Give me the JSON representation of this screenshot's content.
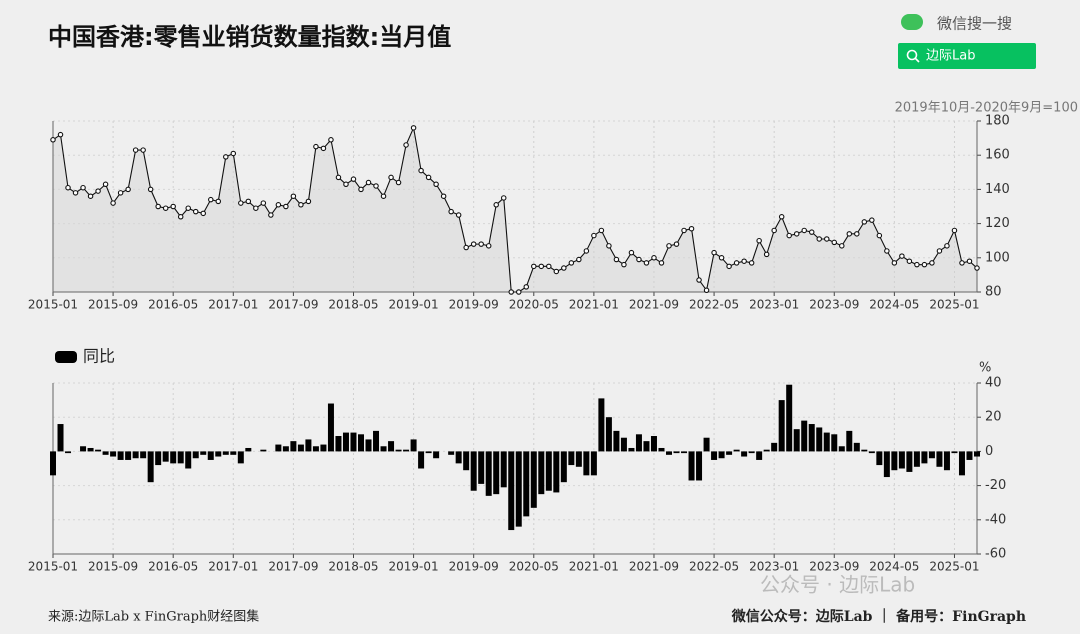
{
  "header": {
    "title": "中国香港:零售业销货数量指数:当月值",
    "search_label": "微信搜一搜",
    "search_box": "边际Lab"
  },
  "chart_data": [
    {
      "type": "line",
      "annotation": "2019年10月-2020年9月=100",
      "color": "#111111",
      "area_color": "#e2e2e2",
      "grid": true,
      "categories": [
        "2015-01",
        null,
        null,
        null,
        null,
        null,
        null,
        null,
        "2015-09",
        null,
        null,
        null,
        null,
        null,
        null,
        null,
        "2016-05",
        null,
        null,
        null,
        null,
        null,
        null,
        null,
        "2017-01",
        null,
        null,
        null,
        null,
        null,
        null,
        null,
        "2017-09",
        null,
        null,
        null,
        null,
        null,
        null,
        null,
        "2018-05",
        null,
        null,
        null,
        null,
        null,
        null,
        null,
        "2019-01",
        null,
        null,
        null,
        null,
        null,
        null,
        null,
        "2019-09",
        null,
        null,
        null,
        null,
        null,
        null,
        null,
        "2020-05",
        null,
        null,
        null,
        null,
        null,
        null,
        null,
        "2021-01",
        null,
        null,
        null,
        null,
        null,
        null,
        null,
        "2021-09",
        null,
        null,
        null,
        null,
        null,
        null,
        null,
        "2022-05",
        null,
        null,
        null,
        null,
        null,
        null,
        null,
        "2023-01",
        null,
        null,
        null,
        null,
        null,
        null,
        null,
        "2023-09",
        null,
        null,
        null,
        null,
        null,
        null,
        null,
        "2024-05",
        null,
        null,
        null,
        null,
        null,
        null,
        null,
        "2025-01",
        null,
        null,
        null
      ],
      "values": [
        169,
        172,
        141,
        138,
        141,
        136,
        139,
        143,
        132,
        138,
        140,
        163,
        163,
        140,
        130,
        129,
        130,
        124,
        129,
        127,
        126,
        134,
        133,
        159,
        161,
        132,
        133,
        129,
        132,
        125,
        131,
        130,
        136,
        131,
        133,
        165,
        164,
        169,
        147,
        143,
        146,
        140,
        144,
        142,
        136,
        147,
        144,
        166,
        176,
        151,
        147,
        143,
        136,
        127,
        125,
        106,
        108,
        108,
        107,
        131,
        135,
        80,
        80,
        83,
        95,
        95,
        95,
        92,
        94,
        97,
        99,
        104,
        113,
        116,
        107,
        99,
        96,
        103,
        99,
        97,
        100,
        97,
        107,
        108,
        116,
        117,
        87,
        81,
        103,
        100,
        95,
        97,
        98,
        97,
        110,
        102,
        116,
        124,
        113,
        114,
        116,
        115,
        111,
        111,
        109,
        107,
        114,
        114,
        121,
        122,
        113,
        104,
        97,
        101,
        98,
        96,
        96,
        97,
        104,
        107,
        116,
        97,
        98,
        94
      ],
      "ylim": [
        80,
        180
      ],
      "yticks": [
        80,
        100,
        120,
        140,
        160,
        180
      ]
    },
    {
      "type": "bar",
      "y_unit": "%",
      "grid": true,
      "legend": "top-left",
      "categories": [
        "2015-01",
        null,
        null,
        null,
        null,
        null,
        null,
        null,
        "2015-09",
        null,
        null,
        null,
        null,
        null,
        null,
        null,
        "2016-05",
        null,
        null,
        null,
        null,
        null,
        null,
        null,
        "2017-01",
        null,
        null,
        null,
        null,
        null,
        null,
        null,
        "2017-09",
        null,
        null,
        null,
        null,
        null,
        null,
        null,
        "2018-05",
        null,
        null,
        null,
        null,
        null,
        null,
        null,
        "2019-01",
        null,
        null,
        null,
        null,
        null,
        null,
        null,
        "2019-09",
        null,
        null,
        null,
        null,
        null,
        null,
        null,
        "2020-05",
        null,
        null,
        null,
        null,
        null,
        null,
        null,
        "2021-01",
        null,
        null,
        null,
        null,
        null,
        null,
        null,
        "2021-09",
        null,
        null,
        null,
        null,
        null,
        null,
        null,
        "2022-05",
        null,
        null,
        null,
        null,
        null,
        null,
        null,
        "2023-01",
        null,
        null,
        null,
        null,
        null,
        null,
        null,
        "2023-09",
        null,
        null,
        null,
        null,
        null,
        null,
        null,
        "2024-05",
        null,
        null,
        null,
        null,
        null,
        null,
        null,
        "2025-01",
        null,
        null,
        null
      ],
      "series": [
        {
          "name": "同比",
          "color": "#000000",
          "values": [
            -14,
            16,
            -1,
            0,
            3,
            2,
            1,
            -2,
            -3,
            -5,
            -5,
            -4,
            -4,
            -18,
            -8,
            -6,
            -7,
            -7,
            -10,
            -4,
            -2,
            -5,
            -3,
            -2,
            -2,
            -7,
            2,
            0,
            1,
            0,
            4,
            3,
            6,
            4,
            7,
            3,
            4,
            28,
            9,
            11,
            11,
            10,
            7,
            12,
            3,
            6,
            1,
            1,
            7,
            -10,
            -1,
            -4,
            0,
            -2,
            -7,
            -11,
            -23,
            -19,
            -26,
            -25,
            -21,
            -46,
            -44,
            -38,
            -33,
            -25,
            -23,
            -24,
            -18,
            -8,
            -9,
            -14,
            -14,
            31,
            20,
            12,
            8,
            2,
            10,
            6,
            9,
            2,
            -2,
            -1,
            -1,
            -17,
            -17,
            8,
            -5,
            -4,
            -2,
            1,
            -3,
            -1,
            -5,
            1,
            5,
            30,
            39,
            13,
            18,
            16,
            14,
            11,
            10,
            3,
            12,
            5,
            1,
            -1,
            -8,
            -15,
            -11,
            -10,
            -12,
            -9,
            -7,
            -4,
            -9,
            -11,
            -1,
            -14,
            -5,
            -3
          ]
        }
      ],
      "ylim": [
        -60,
        40
      ],
      "yticks": [
        -60,
        -40,
        -20,
        0,
        20,
        40
      ]
    }
  ],
  "footer": {
    "source": "来源:边际Lab x FinGraph财经图集",
    "account": "微信公众号：边际Lab ｜ 备用号：FinGraph",
    "watermark": "公众号 · 边际Lab"
  }
}
